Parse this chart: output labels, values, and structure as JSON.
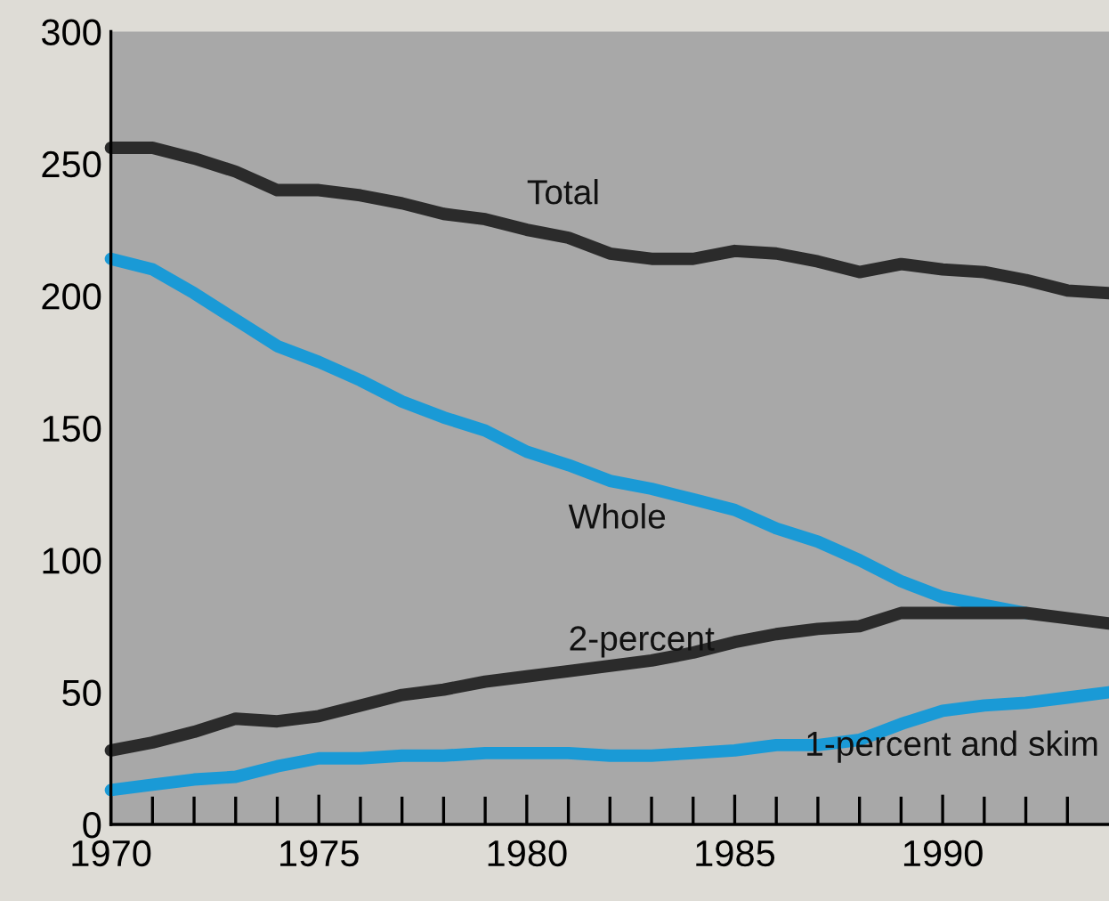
{
  "chart_data": {
    "type": "line",
    "x": [
      1970,
      1971,
      1972,
      1973,
      1974,
      1975,
      1976,
      1977,
      1978,
      1979,
      1980,
      1981,
      1982,
      1983,
      1984,
      1985,
      1986,
      1987,
      1988,
      1989,
      1990,
      1991,
      1992,
      1993,
      1994
    ],
    "series": [
      {
        "name": "Total",
        "color": "#2b2b2b",
        "values": [
          256,
          256,
          252,
          247,
          240,
          240,
          238,
          235,
          231,
          229,
          225,
          222,
          216,
          214,
          214,
          217,
          216,
          213,
          209,
          212,
          210,
          209,
          206,
          202,
          201
        ]
      },
      {
        "name": "Whole",
        "color": "#1a9ad6",
        "values": [
          214,
          210,
          201,
          191,
          181,
          175,
          168,
          160,
          154,
          149,
          141,
          136,
          130,
          127,
          123,
          119,
          112,
          107,
          100,
          92,
          86,
          83,
          80,
          null,
          null
        ]
      },
      {
        "name": "2-percent",
        "color": "#2b2b2b",
        "values": [
          28,
          31,
          35,
          40,
          39,
          41,
          45,
          49,
          51,
          54,
          56,
          58,
          60,
          62,
          65,
          69,
          72,
          74,
          75,
          80,
          80,
          80,
          80,
          78,
          76
        ]
      },
      {
        "name": "1-percent and skim",
        "color": "#1a9ad6",
        "values": [
          13,
          15,
          17,
          18,
          22,
          25,
          25,
          26,
          26,
          27,
          27,
          27,
          26,
          26,
          27,
          28,
          30,
          30,
          32,
          38,
          43,
          45,
          46,
          48,
          50
        ]
      }
    ],
    "xlim": [
      1970,
      1994
    ],
    "xticks": [
      1970,
      1975,
      1980,
      1985,
      1990
    ],
    "ylim": [
      0,
      300
    ],
    "yticks": [
      0,
      50,
      100,
      150,
      200,
      250,
      300
    ],
    "grid": false,
    "legend": false,
    "line_style": "solid"
  }
}
